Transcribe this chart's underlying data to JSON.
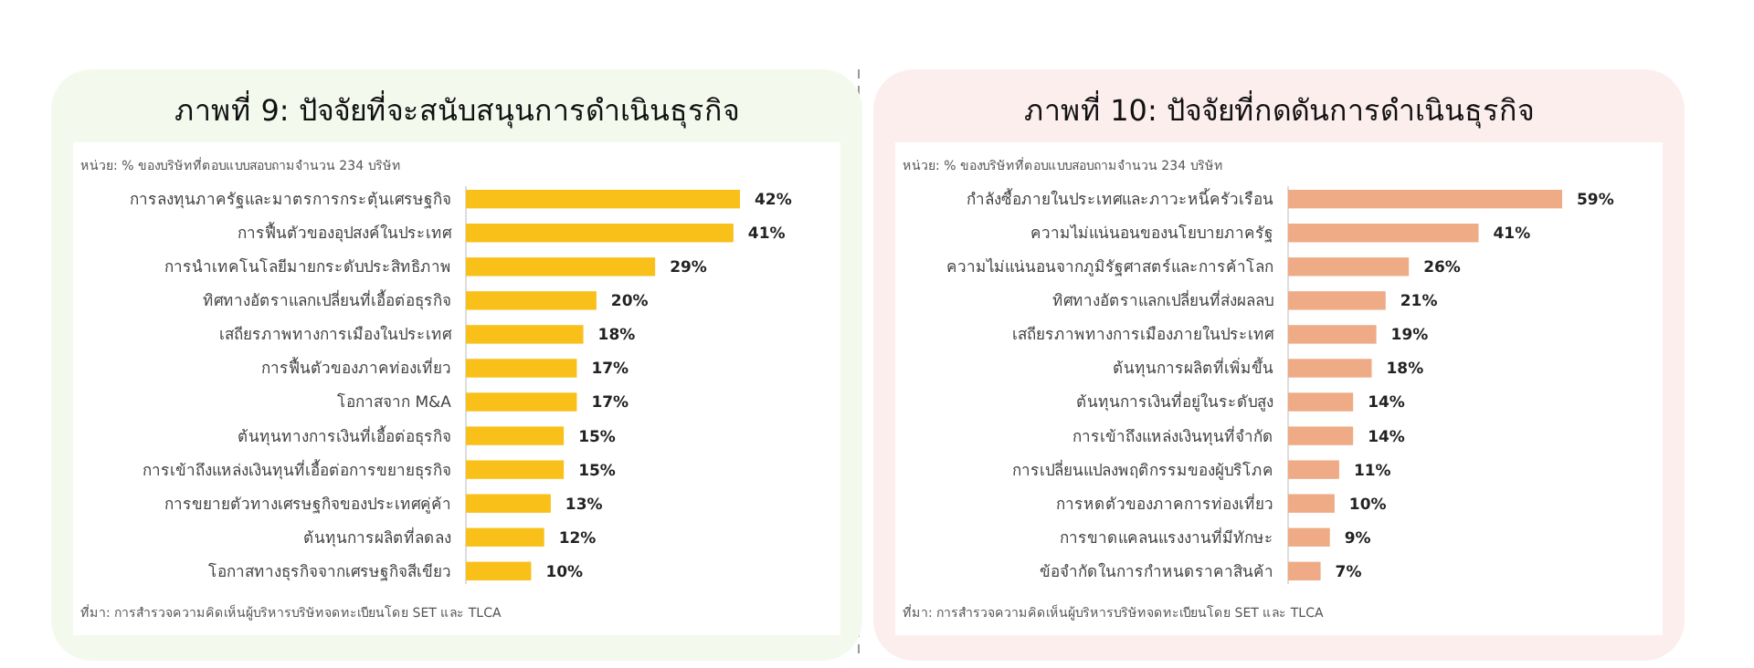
{
  "chart_data": [
    {
      "type": "bar",
      "orientation": "horizontal",
      "title": "ภาพที่ 9: ปัจจัยที่จะสนับสนุนการดำเนินธุรกิจ",
      "categories": [
        "การลงทุนภาครัฐและมาตรการกระตุ้นเศรษฐกิจ",
        "การฟื้นตัวของอุปสงค์ในประเทศ",
        "การนำเทคโนโลยีมายกระดับประสิทธิภาพ",
        "ทิศทางอัตราแลกเปลี่ยนที่เอื้อต่อธุรกิจ",
        "เสถียรภาพทางการเมืองในประเทศ",
        "การฟื้นตัวของภาคท่องเที่ยว",
        "โอกาสจาก M&A",
        "ต้นทุนทางการเงินที่เอื้อต่อธุรกิจ",
        "การเข้าถึงแหล่งเงินทุนที่เอื้อต่อการขยายธุรกิจ",
        "การขยายตัวทางเศรษฐกิจของประเทศคู่ค้า",
        "ต้นทุนการผลิตที่ลดลง",
        "โอกาสทางธุรกิจจากเศรษฐกิจสีเขียว"
      ],
      "values": [
        42,
        41,
        29,
        20,
        18,
        17,
        17,
        15,
        15,
        13,
        12,
        10
      ],
      "value_labels": [
        "42%",
        "41%",
        "29%",
        "20%",
        "18%",
        "17%",
        "17%",
        "15%",
        "15%",
        "13%",
        "12%",
        "10%"
      ],
      "color": "#f9c019",
      "annotations": [
        "หน่วย: % ของบริษัทที่ตอบแบบสอบถามจำนวน 234 บริษัท",
        "ที่มา: การสำรวจความคิดเห็นผู้บริหารบริษัทจดทะเบียนโดย SET และ TLCA"
      ]
    },
    {
      "type": "bar",
      "orientation": "horizontal",
      "title": "ภาพที่ 10: ปัจจัยที่กดดันการดำเนินธุรกิจ",
      "categories": [
        "กำลังซื้อภายในประเทศและภาวะหนี้ครัวเรือน",
        "ความไม่แน่นอนของนโยบายภาครัฐ",
        "ความไม่แน่นอนจากภูมิรัฐศาสตร์และการค้าโลก",
        "ทิศทางอัตราแลกเปลี่ยนที่ส่งผลลบ",
        "เสถียรภาพทางการเมืองภายในประเทศ",
        "ต้นทุนการผลิตที่เพิ่มขึ้น",
        "ต้นทุนการเงินที่อยู่ในระดับสูง",
        "การเข้าถึงแหล่งเงินทุนที่จำกัด",
        "การเปลี่ยนแปลงพฤติกรรมของผู้บริโภค",
        "การหดตัวของภาคการท่องเที่ยว",
        "การขาดแคลนแรงงานที่มีทักษะ",
        "ข้อจำกัดในการกำหนดราคาสินค้า"
      ],
      "values": [
        59,
        41,
        26,
        21,
        19,
        18,
        14,
        14,
        11,
        10,
        9,
        7
      ],
      "value_labels": [
        "59%",
        "41%",
        "26%",
        "21%",
        "19%",
        "18%",
        "14%",
        "14%",
        "11%",
        "10%",
        "9%",
        "7%"
      ],
      "color": "#eeab86",
      "annotations": [
        "หน่วย: % ของบริษัทที่ตอบแบบสอบถามจำนวน 234 บริษัท",
        "ที่มา: การสำรวจความคิดเห็นผู้บริหารบริษัทจดทะเบียนโดย SET และ TLCA"
      ]
    }
  ]
}
